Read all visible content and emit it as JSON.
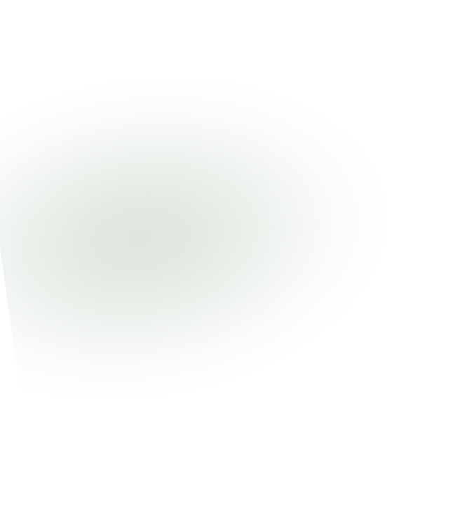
{
  "background": {
    "style": "soft radial blur",
    "colors": {
      "center": "#dfe6df",
      "edge": "#ffffff"
    }
  }
}
